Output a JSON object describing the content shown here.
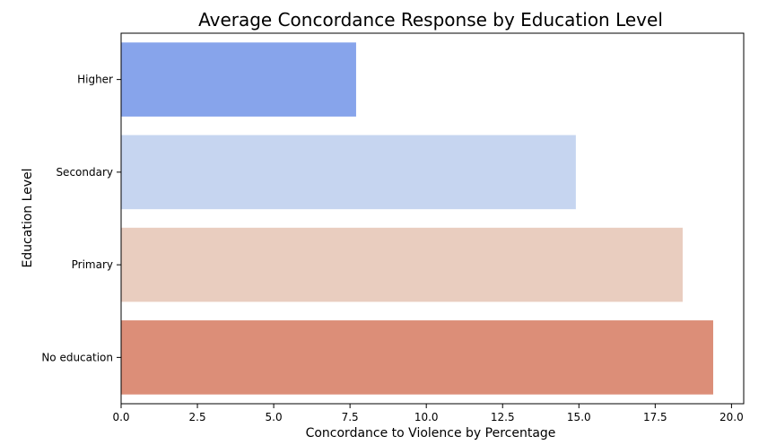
{
  "chart_data": {
    "type": "bar",
    "orientation": "horizontal",
    "title": "Average Concordance Response by Education Level",
    "xlabel": "Concordance to Violence by Percentage",
    "ylabel": "Education Level",
    "categories": [
      "Higher",
      "Secondary",
      "Primary",
      "No education"
    ],
    "values": [
      7.7,
      14.9,
      18.4,
      19.4
    ],
    "colors": [
      "#87a4eb",
      "#c6d5f0",
      "#e9cdbf",
      "#dc8e78"
    ],
    "xlim": [
      0,
      20.4
    ],
    "xticks": [
      "0.0",
      "2.5",
      "5.0",
      "7.5",
      "10.0",
      "12.5",
      "15.0",
      "17.5",
      "20.0"
    ],
    "grid": false,
    "legend": "none"
  }
}
